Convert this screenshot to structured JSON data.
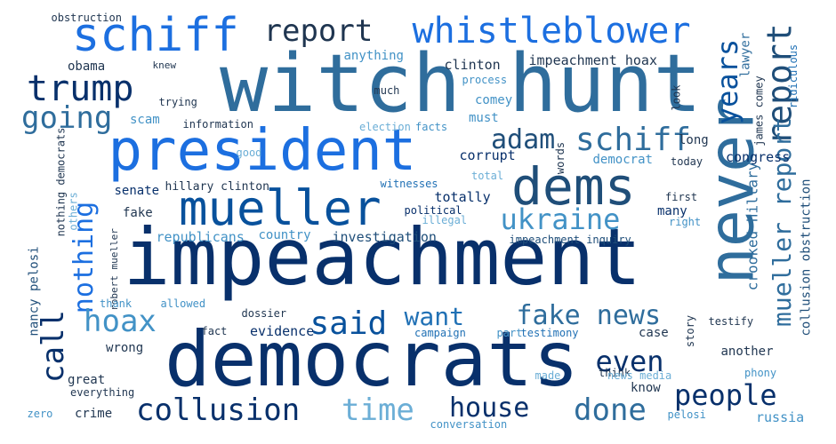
{
  "colors": {
    "darkest": "#08306b",
    "dark": "#08519c",
    "medium": "#2171b5",
    "steel": "#2f6d9c",
    "bright": "#1c6fe0",
    "light": "#4292c6",
    "pale": "#6baed6",
    "slate": "#1f4e79"
  },
  "words": [
    {
      "text": "witch hunt",
      "size": 90,
      "color": "#2f6d9c",
      "rotate": false
    },
    {
      "text": "impeachment",
      "size": 88,
      "color": "#08306b",
      "rotate": false
    },
    {
      "text": "democrats",
      "size": 86,
      "color": "#08306b",
      "rotate": false
    },
    {
      "text": "president",
      "size": 64,
      "color": "#1c6fe0",
      "rotate": false
    },
    {
      "text": "schiff",
      "size": 52,
      "color": "#1c6fe0",
      "rotate": false
    },
    {
      "text": "never",
      "size": 70,
      "color": "#2f6d9c",
      "rotate": true
    },
    {
      "text": "dems",
      "size": 58,
      "color": "#1f4e79",
      "rotate": false
    },
    {
      "text": "mueller",
      "size": 54,
      "color": "#08519c",
      "rotate": false
    },
    {
      "text": "whistleblower",
      "size": 40,
      "color": "#1c6fe0",
      "rotate": false
    },
    {
      "text": "report",
      "size": 34,
      "color": "#1f3550",
      "rotate": false
    },
    {
      "text": "trump",
      "size": 40,
      "color": "#08306b",
      "rotate": false
    },
    {
      "text": "going",
      "size": 34,
      "color": "#2f6d9c",
      "rotate": false
    },
    {
      "text": "adam",
      "size": 30,
      "color": "#1f4e79",
      "rotate": false
    },
    {
      "text": "schiff",
      "size": 36,
      "color": "#2f6d9c",
      "rotate": false
    },
    {
      "text": "years",
      "size": 32,
      "color": "#08519c",
      "rotate": true
    },
    {
      "text": "report",
      "size": 38,
      "color": "#1f4e79",
      "rotate": true
    },
    {
      "text": "mueller report",
      "size": 28,
      "color": "#2f6d9c",
      "rotate": true
    },
    {
      "text": "ukraine",
      "size": 32,
      "color": "#4292c6",
      "rotate": false
    },
    {
      "text": "nothing",
      "size": 30,
      "color": "#1c6fe0",
      "rotate": true
    },
    {
      "text": "call",
      "size": 34,
      "color": "#08306b",
      "rotate": true
    },
    {
      "text": "hoax",
      "size": 34,
      "color": "#4292c6",
      "rotate": false
    },
    {
      "text": "said",
      "size": 36,
      "color": "#08519c",
      "rotate": false
    },
    {
      "text": "want",
      "size": 28,
      "color": "#2171b5",
      "rotate": false
    },
    {
      "text": "fake news",
      "size": 30,
      "color": "#2f6d9c",
      "rotate": false
    },
    {
      "text": "even",
      "size": 32,
      "color": "#08306b",
      "rotate": false
    },
    {
      "text": "people",
      "size": 32,
      "color": "#08306b",
      "rotate": false
    },
    {
      "text": "collusion",
      "size": 34,
      "color": "#08306b",
      "rotate": false
    },
    {
      "text": "time",
      "size": 34,
      "color": "#6baed6",
      "rotate": false
    },
    {
      "text": "house",
      "size": 30,
      "color": "#08306b",
      "rotate": false
    },
    {
      "text": "done",
      "size": 34,
      "color": "#2f6d9c",
      "rotate": false
    },
    {
      "text": "clinton",
      "size": 15,
      "color": "#1f3550",
      "rotate": false
    },
    {
      "text": "impeachment hoax",
      "size": 15,
      "color": "#1f3550",
      "rotate": false
    },
    {
      "text": "anything",
      "size": 14,
      "color": "#4292c6",
      "rotate": false
    },
    {
      "text": "obama",
      "size": 14,
      "color": "#1f3550",
      "rotate": false
    },
    {
      "text": "knew",
      "size": 11,
      "color": "#1f3550",
      "rotate": false
    },
    {
      "text": "obstruction",
      "size": 12,
      "color": "#1f3550",
      "rotate": false
    },
    {
      "text": "trying",
      "size": 12,
      "color": "#1f3550",
      "rotate": false
    },
    {
      "text": "much",
      "size": 12,
      "color": "#1f3550",
      "rotate": false
    },
    {
      "text": "process",
      "size": 12,
      "color": "#4292c6",
      "rotate": false
    },
    {
      "text": "comey",
      "size": 14,
      "color": "#4292c6",
      "rotate": false
    },
    {
      "text": "must",
      "size": 14,
      "color": "#4292c6",
      "rotate": false
    },
    {
      "text": "scam",
      "size": 14,
      "color": "#4292c6",
      "rotate": false
    },
    {
      "text": "information",
      "size": 12,
      "color": "#1f3550",
      "rotate": false
    },
    {
      "text": "election",
      "size": 12,
      "color": "#6baed6",
      "rotate": false
    },
    {
      "text": "facts",
      "size": 12,
      "color": "#4292c6",
      "rotate": false
    },
    {
      "text": "corrupt",
      "size": 15,
      "color": "#08306b",
      "rotate": false
    },
    {
      "text": "democrat",
      "size": 14,
      "color": "#4292c6",
      "rotate": false
    },
    {
      "text": "today",
      "size": 12,
      "color": "#1f3550",
      "rotate": false
    },
    {
      "text": "long",
      "size": 14,
      "color": "#1f3550",
      "rotate": false
    },
    {
      "text": "congress",
      "size": 15,
      "color": "#08306b",
      "rotate": false
    },
    {
      "text": "lawyer",
      "size": 14,
      "color": "#2f6d9c",
      "rotate": true
    },
    {
      "text": "james comey",
      "size": 12,
      "color": "#1f3550",
      "rotate": true
    },
    {
      "text": "ridiculous",
      "size": 12,
      "color": "#2171b5",
      "rotate": true
    },
    {
      "text": "look",
      "size": 12,
      "color": "#1f3550",
      "rotate": true
    },
    {
      "text": "good",
      "size": 12,
      "color": "#6baed6",
      "rotate": false
    },
    {
      "text": "words",
      "size": 12,
      "color": "#1f3550",
      "rotate": true
    },
    {
      "text": "total",
      "size": 12,
      "color": "#6baed6",
      "rotate": false
    },
    {
      "text": "senate",
      "size": 14,
      "color": "#08306b",
      "rotate": false
    },
    {
      "text": "hillary clinton",
      "size": 13,
      "color": "#1f3550",
      "rotate": false
    },
    {
      "text": "witnesses",
      "size": 12,
      "color": "#2171b5",
      "rotate": false
    },
    {
      "text": "totally",
      "size": 15,
      "color": "#08306b",
      "rotate": false
    },
    {
      "text": "first",
      "size": 12,
      "color": "#1f3550",
      "rotate": false
    },
    {
      "text": "fake",
      "size": 14,
      "color": "#1f3550",
      "rotate": false
    },
    {
      "text": "political",
      "size": 12,
      "color": "#08306b",
      "rotate": false
    },
    {
      "text": "illegal",
      "size": 12,
      "color": "#6baed6",
      "rotate": false
    },
    {
      "text": "many",
      "size": 14,
      "color": "#08306b",
      "rotate": false
    },
    {
      "text": "right",
      "size": 12,
      "color": "#4292c6",
      "rotate": false
    },
    {
      "text": "crooked hillary",
      "size": 16,
      "color": "#2f6d9c",
      "rotate": true
    },
    {
      "text": "collusion obstruction",
      "size": 14,
      "color": "#1f4e79",
      "rotate": true
    },
    {
      "text": "republicans",
      "size": 15,
      "color": "#4292c6",
      "rotate": false
    },
    {
      "text": "country",
      "size": 14,
      "color": "#4292c6",
      "rotate": false
    },
    {
      "text": "investigation",
      "size": 15,
      "color": "#1f4e79",
      "rotate": false
    },
    {
      "text": "impeachment inquiry",
      "size": 12,
      "color": "#1f4e79",
      "rotate": false
    },
    {
      "text": "nancy pelosi",
      "size": 14,
      "color": "#1f4e79",
      "rotate": true
    },
    {
      "text": "nothing democrats",
      "size": 12,
      "color": "#1f3550",
      "rotate": true
    },
    {
      "text": "others",
      "size": 12,
      "color": "#6baed6",
      "rotate": true
    },
    {
      "text": "robert mueller",
      "size": 11,
      "color": "#1f3550",
      "rotate": true
    },
    {
      "text": "thank",
      "size": 12,
      "color": "#4292c6",
      "rotate": false
    },
    {
      "text": "allowed",
      "size": 12,
      "color": "#4292c6",
      "rotate": false
    },
    {
      "text": "dossier",
      "size": 12,
      "color": "#1f3550",
      "rotate": false
    },
    {
      "text": "fact",
      "size": 12,
      "color": "#1f3550",
      "rotate": false
    },
    {
      "text": "evidence",
      "size": 15,
      "color": "#08306b",
      "rotate": false
    },
    {
      "text": "campaign",
      "size": 12,
      "color": "#2171b5",
      "rotate": false
    },
    {
      "text": "part",
      "size": 12,
      "color": "#4292c6",
      "rotate": false
    },
    {
      "text": "testimony",
      "size": 12,
      "color": "#2171b5",
      "rotate": false
    },
    {
      "text": "story",
      "size": 12,
      "color": "#1f3550",
      "rotate": true
    },
    {
      "text": "case",
      "size": 14,
      "color": "#1f3550",
      "rotate": false
    },
    {
      "text": "testify",
      "size": 12,
      "color": "#1f3550",
      "rotate": false
    },
    {
      "text": "wrong",
      "size": 14,
      "color": "#1f3550",
      "rotate": false
    },
    {
      "text": "another",
      "size": 14,
      "color": "#1f3550",
      "rotate": false
    },
    {
      "text": "phony",
      "size": 12,
      "color": "#4292c6",
      "rotate": false
    },
    {
      "text": "great",
      "size": 14,
      "color": "#1f3550",
      "rotate": false
    },
    {
      "text": "everything",
      "size": 12,
      "color": "#1f3550",
      "rotate": false
    },
    {
      "text": "made",
      "size": 12,
      "color": "#6baed6",
      "rotate": false
    },
    {
      "text": "think",
      "size": 12,
      "color": "#1f3550",
      "rotate": false
    },
    {
      "text": "news media",
      "size": 12,
      "color": "#6baed6",
      "rotate": false
    },
    {
      "text": "know",
      "size": 14,
      "color": "#1f3550",
      "rotate": false
    },
    {
      "text": "zero",
      "size": 12,
      "color": "#4292c6",
      "rotate": false
    },
    {
      "text": "crime",
      "size": 14,
      "color": "#1f3550",
      "rotate": false
    },
    {
      "text": "conversation",
      "size": 12,
      "color": "#4292c6",
      "rotate": false
    },
    {
      "text": "pelosi",
      "size": 12,
      "color": "#4292c6",
      "rotate": false
    },
    {
      "text": "russia",
      "size": 15,
      "color": "#4292c6",
      "rotate": false
    }
  ]
}
